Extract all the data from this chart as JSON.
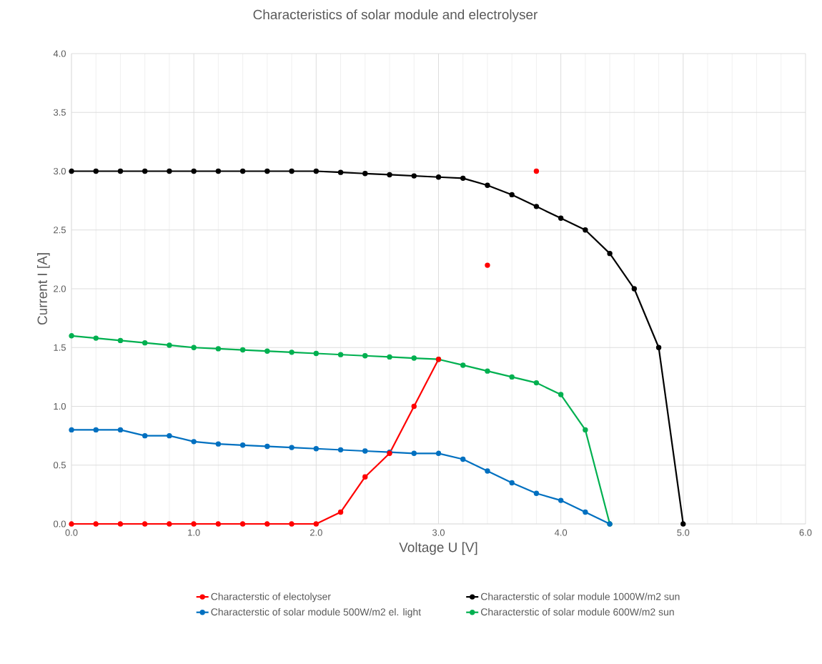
{
  "chart_data": {
    "type": "line",
    "title": "Characteristics of solar module and electrolyser",
    "xlabel": "Voltage U [V]",
    "ylabel": "Current I [A]",
    "xlim": [
      0,
      6
    ],
    "ylim": [
      0,
      4
    ],
    "xticks": [
      {
        "value": 0,
        "label": "0.0"
      },
      {
        "value": 1,
        "label": "1.0"
      },
      {
        "value": 2,
        "label": "2.0"
      },
      {
        "value": 3,
        "label": "3.0"
      },
      {
        "value": 4,
        "label": "4.0"
      },
      {
        "value": 5,
        "label": "5.0"
      },
      {
        "value": 6,
        "label": "6.0"
      }
    ],
    "yticks": [
      {
        "value": 0,
        "label": "0.0"
      },
      {
        "value": 0.5,
        "label": "0.5"
      },
      {
        "value": 1,
        "label": "1.0"
      },
      {
        "value": 1.5,
        "label": "1.5"
      },
      {
        "value": 2,
        "label": "2.0"
      },
      {
        "value": 2.5,
        "label": "2.5"
      },
      {
        "value": 3,
        "label": "3.0"
      },
      {
        "value": 3.5,
        "label": "3.5"
      },
      {
        "value": 4,
        "label": "4.0"
      }
    ],
    "grid": true,
    "legend": "bottom",
    "marker": "circle",
    "line_style": "solid",
    "series": [
      {
        "name": "Characterstic of electolyser",
        "color": "#ff0000",
        "x": [
          0,
          0.2,
          0.4,
          0.6,
          0.8,
          1.0,
          1.2,
          1.4,
          1.6,
          1.8,
          2.0,
          2.2,
          2.4,
          2.6,
          2.8,
          3.0,
          3.2,
          3.4,
          3.6,
          3.8
        ],
        "values": [
          0,
          0,
          0,
          0,
          0,
          0,
          0,
          0,
          0,
          0,
          0,
          0.1,
          0.4,
          0.6,
          1.0,
          1.4,
          null,
          2.2,
          null,
          3.0
        ]
      },
      {
        "name": "Characterstic of solar module 1000W/m2 sun",
        "color": "#000000",
        "x": [
          0,
          0.2,
          0.4,
          0.6,
          0.8,
          1.0,
          1.2,
          1.4,
          1.6,
          1.8,
          2.0,
          2.2,
          2.4,
          2.6,
          2.8,
          3.0,
          3.2,
          3.4,
          3.6,
          3.8,
          4.0,
          4.2,
          4.4,
          4.6,
          4.8,
          5.0
        ],
        "values": [
          3.0,
          3.0,
          3.0,
          3.0,
          3.0,
          3.0,
          3.0,
          3.0,
          3.0,
          3.0,
          3.0,
          2.99,
          2.98,
          2.97,
          2.96,
          2.95,
          2.94,
          2.88,
          2.8,
          2.7,
          2.6,
          2.5,
          2.3,
          2.0,
          1.5,
          0
        ]
      },
      {
        "name": "Characterstic of solar module 500W/m2 el. light",
        "color": "#0070c0",
        "x": [
          0,
          0.2,
          0.4,
          0.6,
          0.8,
          1.0,
          1.2,
          1.4,
          1.6,
          1.8,
          2.0,
          2.2,
          2.4,
          2.6,
          2.8,
          3.0,
          3.2,
          3.4,
          3.6,
          3.8,
          4.0,
          4.2,
          4.4
        ],
        "values": [
          0.8,
          0.8,
          0.8,
          0.75,
          0.75,
          0.7,
          0.68,
          0.67,
          0.66,
          0.65,
          0.64,
          0.63,
          0.62,
          0.61,
          0.6,
          0.6,
          0.55,
          0.45,
          0.35,
          0.26,
          0.2,
          0.1,
          0
        ]
      },
      {
        "name": "Characterstic of solar module 600W/m2 sun",
        "color": "#00b050",
        "x": [
          0,
          0.2,
          0.4,
          0.6,
          0.8,
          1.0,
          1.2,
          1.4,
          1.6,
          1.8,
          2.0,
          2.2,
          2.4,
          2.6,
          2.8,
          3.0,
          3.2,
          3.4,
          3.6,
          3.8,
          4.0,
          4.2,
          4.4
        ],
        "values": [
          1.6,
          1.58,
          1.56,
          1.54,
          1.52,
          1.5,
          1.49,
          1.48,
          1.47,
          1.46,
          1.45,
          1.44,
          1.43,
          1.42,
          1.41,
          1.4,
          1.35,
          1.3,
          1.25,
          1.2,
          1.1,
          0.8,
          0
        ]
      }
    ]
  }
}
